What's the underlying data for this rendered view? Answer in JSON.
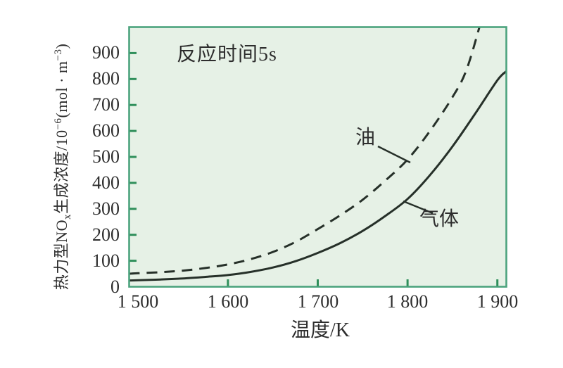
{
  "chart_data": {
    "type": "line",
    "annotation": "反应时间5s",
    "xlabel": "温度/K",
    "ylabel": "热力型NOx生成浓度/10−6(mol · m−3)",
    "ylabel_parts": [
      [
        "t",
        "热力型NO"
      ],
      [
        "sub",
        "x"
      ],
      [
        "t",
        "生成浓度/10"
      ],
      [
        "sup",
        "−6"
      ],
      [
        "t",
        "(mol · m"
      ],
      [
        "sup",
        "−3"
      ],
      [
        "t",
        ")"
      ]
    ],
    "x_ticks": [
      "1 500",
      "1 600",
      "1 700",
      "1 800",
      "1 900"
    ],
    "x_tick_values": [
      1500,
      1600,
      1700,
      1800,
      1900
    ],
    "y_ticks": [
      "0",
      "100",
      "200",
      "300",
      "400",
      "500",
      "600",
      "700",
      "800",
      "900"
    ],
    "y_tick_values": [
      0,
      100,
      200,
      300,
      400,
      500,
      600,
      700,
      800,
      900
    ],
    "xlim": [
      1490,
      1910
    ],
    "ylim": [
      0,
      1000
    ],
    "grid": false,
    "legend_position": "inline-labels-with-leader-lines",
    "series": [
      {
        "name": "油",
        "style": "dashed",
        "x": [
          1490,
          1500,
          1525,
          1550,
          1575,
          1600,
          1625,
          1650,
          1675,
          1700,
          1725,
          1750,
          1775,
          1800,
          1825,
          1850,
          1865,
          1880,
          1892
        ],
        "values": [
          50,
          52,
          56,
          62,
          72,
          86,
          106,
          134,
          172,
          222,
          275,
          335,
          408,
          490,
          600,
          730,
          830,
          1000,
          1160
        ]
      },
      {
        "name": "气体",
        "style": "solid",
        "x": [
          1490,
          1500,
          1525,
          1550,
          1575,
          1600,
          1625,
          1650,
          1675,
          1700,
          1725,
          1750,
          1775,
          1800,
          1825,
          1850,
          1875,
          1900,
          1910
        ],
        "values": [
          24,
          25,
          28,
          32,
          38,
          45,
          57,
          74,
          98,
          130,
          168,
          215,
          272,
          338,
          430,
          540,
          665,
          795,
          830
        ]
      }
    ],
    "colors": {
      "plot_background": "#e6f1e6",
      "frame": "#4ba37d",
      "tick": "#2f8f5b",
      "curve": "#263029",
      "text": "#2d2d2d"
    }
  }
}
